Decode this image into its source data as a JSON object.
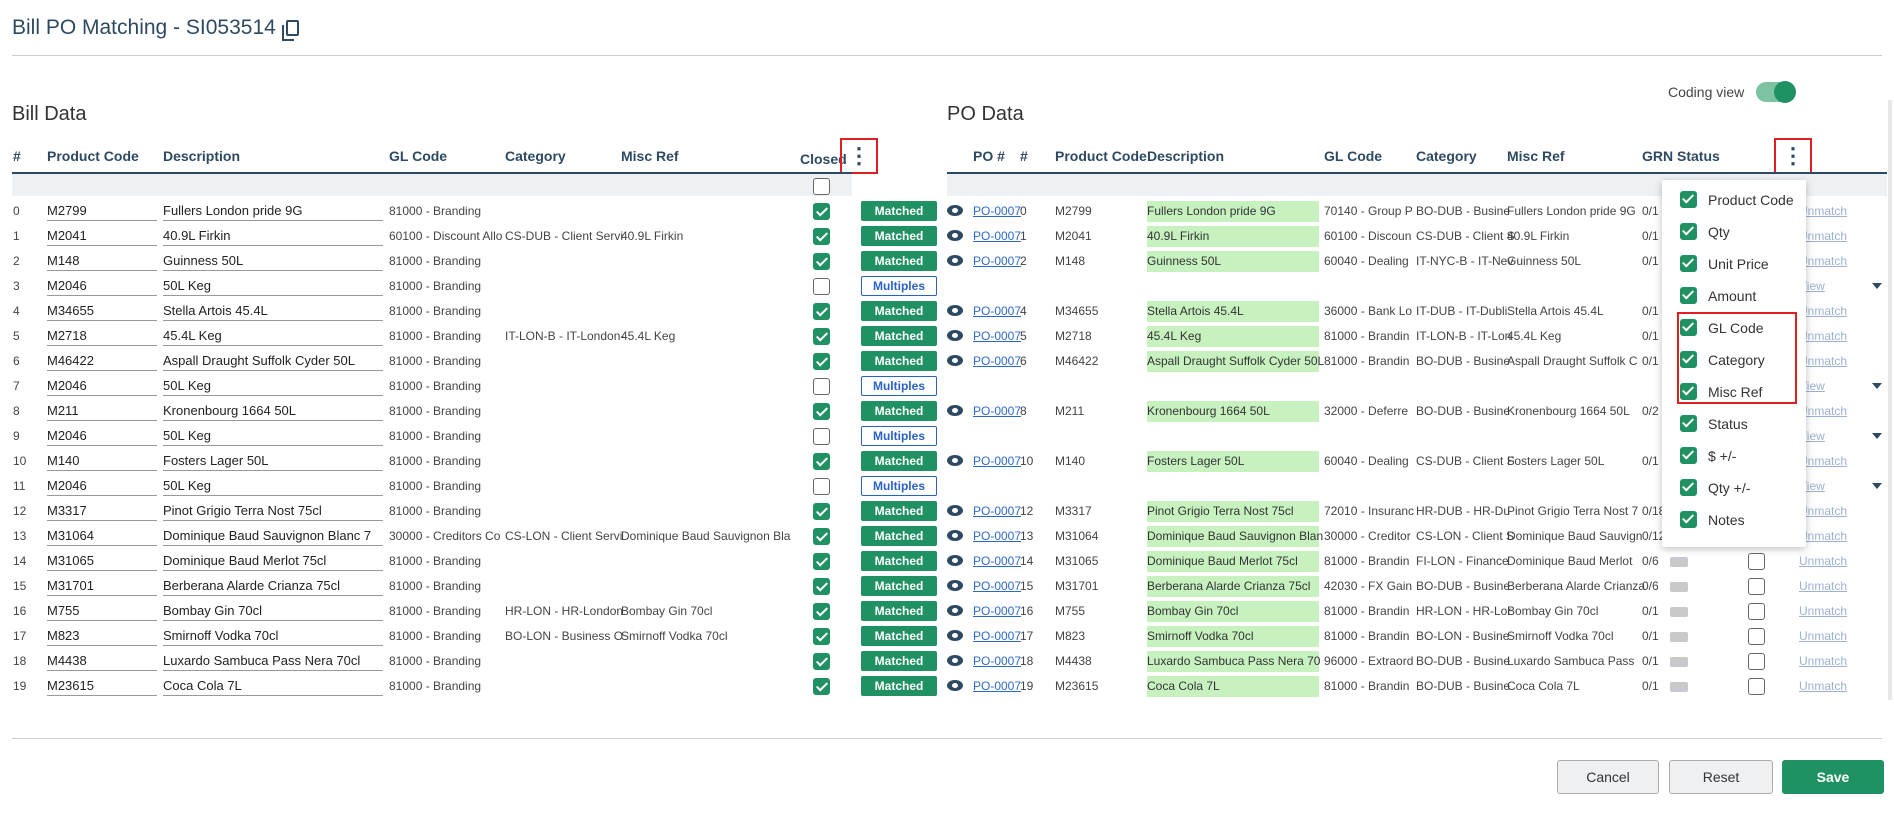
{
  "page": {
    "title": "Bill PO Matching - SI053514",
    "coding_view_label": "Coding view"
  },
  "bill": {
    "section": "Bill Data",
    "headers": {
      "num": "#",
      "product_code": "Product Code",
      "description": "Description",
      "gl_code": "GL Code",
      "category": "Category",
      "misc_ref": "Misc Ref",
      "closed": "Closed"
    }
  },
  "po": {
    "section": "PO Data",
    "headers": {
      "po_num": "PO #",
      "num": "#",
      "product_code": "Product Code",
      "description": "Description",
      "gl_code": "GL Code",
      "category": "Category",
      "misc_ref": "Misc Ref",
      "grn_status": "GRN Status"
    }
  },
  "rows": [
    {
      "n": "0",
      "pc": "M2799",
      "desc": "Fullers London pride 9G",
      "gl": "81000 - Branding",
      "cat": "",
      "misc": "",
      "closed": true,
      "status": "Matched",
      "po": "PO-0007",
      "pn": "0",
      "ppc": "M2799",
      "pdesc": "Fullers London pride 9G",
      "pgl": "70140 - Group P",
      "pcat": "BO-DUB - Busine",
      "pmisc": "Fullers London pride 9G",
      "qty": "0/1",
      "action": "Unmatch"
    },
    {
      "n": "1",
      "pc": "M2041",
      "desc": "40.9L Firkin",
      "gl": "60100 - Discount Allo",
      "cat": "CS-DUB - Client Servi",
      "misc": "40.9L Firkin",
      "closed": true,
      "status": "Matched",
      "po": "PO-0007",
      "pn": "1",
      "ppc": "M2041",
      "pdesc": "40.9L Firkin",
      "pgl": "60100 - Discoun",
      "pcat": "CS-DUB - Client S",
      "pmisc": "40.9L Firkin",
      "qty": "0/1",
      "action": "Unmatch"
    },
    {
      "n": "2",
      "pc": "M148",
      "desc": "Guinness  50L",
      "gl": "81000 - Branding",
      "cat": "",
      "misc": "",
      "closed": true,
      "status": "Matched",
      "po": "PO-0007",
      "pn": "2",
      "ppc": "M148",
      "pdesc": "Guinness 50L",
      "pgl": "60040 - Dealing",
      "pcat": "IT-NYC-B - IT-Nev",
      "pmisc": "Guinness 50L",
      "qty": "0/1",
      "action": "Unmatch"
    },
    {
      "n": "3",
      "pc": "M2046",
      "desc": "50L Keg",
      "gl": "81000 - Branding",
      "cat": "",
      "misc": "",
      "closed": false,
      "status": "Multiples",
      "po": "",
      "pn": "",
      "ppc": "",
      "pdesc": "",
      "pgl": "",
      "pcat": "",
      "pmisc": "",
      "qty": "",
      "action": "View"
    },
    {
      "n": "4",
      "pc": "M34655",
      "desc": "Stella Artois  45.4L",
      "gl": "81000 - Branding",
      "cat": "",
      "misc": "",
      "closed": true,
      "status": "Matched",
      "po": "PO-0007",
      "pn": "4",
      "ppc": "M34655",
      "pdesc": "Stella Artois 45.4L",
      "pgl": "36000 - Bank Lo",
      "pcat": "IT-DUB - IT-Dubli",
      "pmisc": "Stella Artois 45.4L",
      "qty": "0/1",
      "action": "Unmatch"
    },
    {
      "n": "5",
      "pc": "M2718",
      "desc": "45.4L Keg",
      "gl": "81000 - Branding",
      "cat": "IT-LON-B - IT-London-",
      "misc": "45.4L Keg",
      "closed": true,
      "status": "Matched",
      "po": "PO-0007",
      "pn": "5",
      "ppc": "M2718",
      "pdesc": "45.4L Keg",
      "pgl": "81000 - Brandin",
      "pcat": "IT-LON-B - IT-Lon",
      "pmisc": "45.4L Keg",
      "qty": "0/1",
      "action": "Unmatch"
    },
    {
      "n": "6",
      "pc": "M46422",
      "desc": "Aspall Draught Suffolk Cyder 50L",
      "gl": "81000 - Branding",
      "cat": "",
      "misc": "",
      "closed": true,
      "status": "Matched",
      "po": "PO-0007",
      "pn": "6",
      "ppc": "M46422",
      "pdesc": "Aspall Draught Suffolk Cyder 50L",
      "pgl": "81000 - Brandin",
      "pcat": "BO-DUB - Busine",
      "pmisc": "Aspall Draught Suffolk C",
      "qty": "0/1",
      "action": "Unmatch"
    },
    {
      "n": "7",
      "pc": "M2046",
      "desc": "50L Keg",
      "gl": "81000 - Branding",
      "cat": "",
      "misc": "",
      "closed": false,
      "status": "Multiples",
      "po": "",
      "pn": "",
      "ppc": "",
      "pdesc": "",
      "pgl": "",
      "pcat": "",
      "pmisc": "",
      "qty": "",
      "action": "View"
    },
    {
      "n": "8",
      "pc": "M211",
      "desc": "Kronenbourg 1664  50L",
      "gl": "81000 - Branding",
      "cat": "",
      "misc": "",
      "closed": true,
      "status": "Matched",
      "po": "PO-0007",
      "pn": "8",
      "ppc": "M211",
      "pdesc": "Kronenbourg 1664 50L",
      "pgl": "32000 - Deferre",
      "pcat": "BO-DUB - Busine",
      "pmisc": "Kronenbourg 1664 50L",
      "qty": "0/2",
      "action": "Unmatch"
    },
    {
      "n": "9",
      "pc": "M2046",
      "desc": "50L Keg",
      "gl": "81000 - Branding",
      "cat": "",
      "misc": "",
      "closed": false,
      "status": "Multiples",
      "po": "",
      "pn": "",
      "ppc": "",
      "pdesc": "",
      "pgl": "",
      "pcat": "",
      "pmisc": "",
      "qty": "",
      "action": "View"
    },
    {
      "n": "10",
      "pc": "M140",
      "desc": "Fosters Lager  50L",
      "gl": "81000 - Branding",
      "cat": "",
      "misc": "",
      "closed": true,
      "status": "Matched",
      "po": "PO-0007",
      "pn": "10",
      "ppc": "M140",
      "pdesc": "Fosters Lager 50L",
      "pgl": "60040 - Dealing",
      "pcat": "CS-DUB - Client S",
      "pmisc": "Fosters Lager 50L",
      "qty": "0/1",
      "action": "Unmatch"
    },
    {
      "n": "11",
      "pc": "M2046",
      "desc": "50L Keg",
      "gl": "81000 - Branding",
      "cat": "",
      "misc": "",
      "closed": false,
      "status": "Multiples",
      "po": "",
      "pn": "",
      "ppc": "",
      "pdesc": "",
      "pgl": "",
      "pcat": "",
      "pmisc": "",
      "qty": "",
      "action": "View"
    },
    {
      "n": "12",
      "pc": "M3317",
      "desc": "Pinot Grigio Terra Nost  75cl",
      "gl": "81000 - Branding",
      "cat": "",
      "misc": "",
      "closed": true,
      "status": "Matched",
      "po": "PO-0007",
      "pn": "12",
      "ppc": "M3317",
      "pdesc": "Pinot Grigio Terra Nost 75cl",
      "pgl": "72010 - Insuranc",
      "pcat": "HR-DUB - HR-Du",
      "pmisc": "Pinot Grigio Terra Nost 7",
      "qty": "0/18",
      "action": "Unmatch"
    },
    {
      "n": "13",
      "pc": "M31064",
      "desc": "Dominique Baud Sauvignon Blanc  7",
      "gl": "30000 - Creditors Co",
      "cat": "CS-LON - Client Servi",
      "misc": "Dominique Baud Sauvignon Bla",
      "closed": true,
      "status": "Matched",
      "po": "PO-0007",
      "pn": "13",
      "ppc": "M31064",
      "pdesc": "Dominique Baud Sauvignon Blan",
      "pgl": "30000 - Creditor",
      "pcat": "CS-LON - Client S",
      "pmisc": "Dominique Baud Sauvign",
      "qty": "0/12",
      "action": "Unmatch"
    },
    {
      "n": "14",
      "pc": "M31065",
      "desc": "Dominique Baud Merlot  75cl",
      "gl": "81000 - Branding",
      "cat": "",
      "misc": "",
      "closed": true,
      "status": "Matched",
      "po": "PO-0007",
      "pn": "14",
      "ppc": "M31065",
      "pdesc": "Dominique Baud Merlot 75cl",
      "pgl": "81000 - Brandin",
      "pcat": "FI-LON - Finance",
      "pmisc": "Dominique Baud Merlot",
      "qty": "0/6",
      "action": "Unmatch"
    },
    {
      "n": "15",
      "pc": "M31701",
      "desc": "Berberana Alarde Crianza  75cl",
      "gl": "81000 - Branding",
      "cat": "",
      "misc": "",
      "closed": true,
      "status": "Matched",
      "po": "PO-0007",
      "pn": "15",
      "ppc": "M31701",
      "pdesc": "Berberana Alarde Crianza 75cl",
      "pgl": "42030 - FX Gain",
      "pcat": "BO-DUB - Busine",
      "pmisc": "Berberana Alarde Crianza",
      "qty": "0/6",
      "action": "Unmatch"
    },
    {
      "n": "16",
      "pc": "M755",
      "desc": "Bombay Gin  70cl",
      "gl": "81000 - Branding",
      "cat": "HR-LON - HR-London",
      "misc": "Bombay Gin 70cl",
      "closed": true,
      "status": "Matched",
      "po": "PO-0007",
      "pn": "16",
      "ppc": "M755",
      "pdesc": "Bombay Gin 70cl",
      "pgl": "81000 - Brandin",
      "pcat": "HR-LON - HR-Lor",
      "pmisc": "Bombay Gin 70cl",
      "qty": "0/1",
      "action": "Unmatch"
    },
    {
      "n": "17",
      "pc": "M823",
      "desc": "Smirnoff Vodka  70cl",
      "gl": "81000 - Branding",
      "cat": "BO-LON - Business O",
      "misc": "Smirnoff Vodka 70cl",
      "closed": true,
      "status": "Matched",
      "po": "PO-0007",
      "pn": "17",
      "ppc": "M823",
      "pdesc": "Smirnoff Vodka 70cl",
      "pgl": "81000 - Brandin",
      "pcat": "BO-LON - Busine",
      "pmisc": "Smirnoff Vodka 70cl",
      "qty": "0/1",
      "action": "Unmatch"
    },
    {
      "n": "18",
      "pc": "M4438",
      "desc": "Luxardo Sambuca Pass Nera  70cl",
      "gl": "81000 - Branding",
      "cat": "",
      "misc": "",
      "closed": true,
      "status": "Matched",
      "po": "PO-0007",
      "pn": "18",
      "ppc": "M4438",
      "pdesc": "Luxardo Sambuca Pass Nera 70",
      "pgl": "96000 - Extraord",
      "pcat": "BO-DUB - Busine",
      "pmisc": "Luxardo Sambuca Pass",
      "qty": "0/1",
      "action": "Unmatch"
    },
    {
      "n": "19",
      "pc": "M23615",
      "desc": "Coca Cola  7L",
      "gl": "81000 - Branding",
      "cat": "",
      "misc": "",
      "closed": true,
      "status": "Matched",
      "po": "PO-0007",
      "pn": "19",
      "ppc": "M23615",
      "pdesc": "Coca Cola 7L",
      "pgl": "81000 - Brandin",
      "pcat": "BO-DUB - Busine",
      "pmisc": "Coca Cola 7L",
      "qty": "0/1",
      "action": "Unmatch"
    }
  ],
  "column_menu": [
    "Product Code",
    "Qty",
    "Unit Price",
    "Amount",
    "GL Code",
    "Category",
    "Misc Ref",
    "Status",
    "$ +/-",
    "Qty +/-",
    "Notes"
  ],
  "buttons": {
    "cancel": "Cancel",
    "reset": "Reset",
    "save": "Save"
  }
}
